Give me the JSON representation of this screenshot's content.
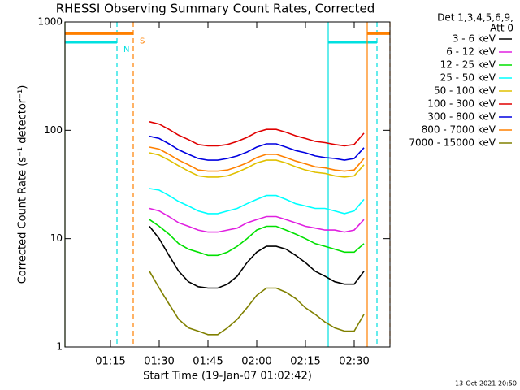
{
  "chart_data": {
    "type": "line",
    "title": "RHESSI Observing Summary Count Rates, Corrected",
    "xlabel": "Start Time (19-Jan-07 01:02:42)",
    "ylabel": "Corrected Count Rate (s⁻¹ detector⁻¹)",
    "legend_title": [
      "Det 1,3,4,5,6,9,",
      "Att 0"
    ],
    "footer": "13-Oct-2021 20:50",
    "log_y": true,
    "xlim": [
      "01:01",
      "02:41"
    ],
    "xticks": [
      "01:15",
      "01:30",
      "01:45",
      "02:00",
      "02:15",
      "02:30"
    ],
    "ylim": [
      1,
      1000
    ],
    "yticks": [
      1,
      10,
      100,
      1000
    ],
    "x": [
      "01:27",
      "01:30",
      "01:33",
      "01:36",
      "01:39",
      "01:42",
      "01:45",
      "01:48",
      "01:51",
      "01:54",
      "01:57",
      "02:00",
      "02:03",
      "02:06",
      "02:09",
      "02:12",
      "02:15",
      "02:18",
      "02:21",
      "02:24",
      "02:27",
      "02:30",
      "02:33"
    ],
    "series": [
      {
        "name": "3 - 6 keV",
        "color": "#000000",
        "values": [
          13,
          10,
          7,
          5,
          4,
          3.6,
          3.5,
          3.5,
          3.8,
          4.5,
          6,
          7.5,
          8.5,
          8.5,
          8,
          7,
          6,
          5,
          4.5,
          4,
          3.8,
          3.8,
          5
        ]
      },
      {
        "name": "6 - 12 keV",
        "color": "#e020e0",
        "values": [
          19,
          18,
          16,
          14,
          13,
          12,
          11.5,
          11.5,
          12,
          12.5,
          14,
          15,
          16,
          16,
          15,
          14,
          13,
          12.5,
          12,
          12,
          11.5,
          12,
          15
        ]
      },
      {
        "name": "12 - 25 keV",
        "color": "#00e000",
        "values": [
          15,
          13,
          11,
          9,
          8,
          7.5,
          7,
          7,
          7.5,
          8.5,
          10,
          12,
          13,
          13,
          12,
          11,
          10,
          9,
          8.5,
          8,
          7.5,
          7.5,
          9
        ]
      },
      {
        "name": "25 - 50 keV",
        "color": "#00ffff",
        "values": [
          29,
          28,
          25,
          22,
          20,
          18,
          17,
          17,
          18,
          19,
          21,
          23,
          25,
          25,
          23,
          21,
          20,
          19,
          19,
          18,
          17,
          18,
          23
        ]
      },
      {
        "name": "50 - 100 keV",
        "color": "#e0c000",
        "values": [
          62,
          59,
          53,
          47,
          42,
          38,
          37,
          37,
          38,
          41,
          45,
          50,
          53,
          53,
          50,
          46,
          43,
          41,
          40,
          38,
          37,
          38,
          48
        ]
      },
      {
        "name": "100 - 300 keV",
        "color": "#e00000",
        "values": [
          120,
          114,
          102,
          90,
          82,
          74,
          72,
          72,
          74,
          79,
          86,
          96,
          102,
          102,
          96,
          89,
          84,
          79,
          77,
          74,
          72,
          74,
          94
        ]
      },
      {
        "name": "300 - 800 keV",
        "color": "#0000e0",
        "values": [
          88,
          84,
          75,
          66,
          60,
          55,
          53,
          53,
          55,
          58,
          63,
          70,
          75,
          75,
          70,
          65,
          62,
          58,
          56,
          55,
          53,
          55,
          69
        ]
      },
      {
        "name": "800 - 7000 keV",
        "color": "#ff8000",
        "values": [
          70,
          67,
          60,
          53,
          48,
          43,
          42,
          42,
          43,
          46,
          50,
          56,
          60,
          60,
          56,
          52,
          49,
          46,
          45,
          43,
          42,
          43,
          55
        ]
      },
      {
        "name": "7000 - 15000 keV",
        "color": "#808000",
        "values": [
          5,
          3.5,
          2.5,
          1.8,
          1.5,
          1.4,
          1.3,
          1.3,
          1.5,
          1.8,
          2.3,
          3,
          3.5,
          3.5,
          3.2,
          2.8,
          2.3,
          2,
          1.7,
          1.5,
          1.4,
          1.4,
          2
        ]
      }
    ],
    "flags": [
      {
        "label": "N",
        "color": "#00e0e0",
        "level": 650,
        "intervals": [
          [
            "01:01",
            "01:17"
          ],
          [
            "02:22",
            "02:37"
          ]
        ]
      },
      {
        "label": "S",
        "color": "#ff8000",
        "level": 780,
        "intervals": [
          [
            "01:01",
            "01:22"
          ],
          [
            "02:34",
            "02:41"
          ]
        ]
      }
    ]
  }
}
